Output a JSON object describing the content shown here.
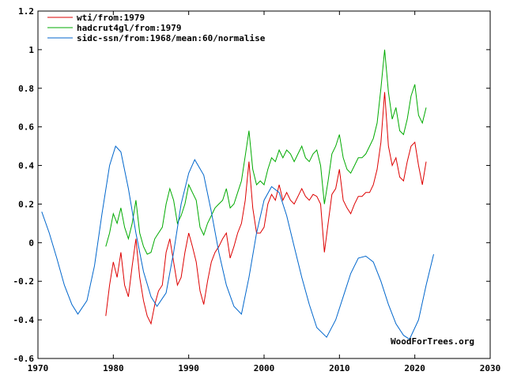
{
  "chart_data": {
    "type": "line",
    "xlim": [
      1970,
      2030
    ],
    "ylim": [
      -0.6,
      1.2
    ],
    "x_ticks": [
      "1970",
      "1980",
      "1990",
      "2000",
      "2010",
      "2020",
      "2030"
    ],
    "y_ticks": [
      "-0.6",
      "-0.4",
      "-0.2",
      "0",
      "0.2",
      "0.4",
      "0.6",
      "0.8",
      "1",
      "1.2"
    ],
    "grid": false,
    "legend_position": "top-left",
    "credit": "WoodForTrees.org",
    "series": [
      {
        "name": "wti/from:1979",
        "color": "#dd0000",
        "x": [
          1979.0,
          1979.5,
          1980.0,
          1980.5,
          1981.0,
          1981.5,
          1982.0,
          1982.5,
          1983.0,
          1983.5,
          1984.0,
          1984.5,
          1985.0,
          1985.5,
          1986.0,
          1986.5,
          1987.0,
          1987.5,
          1988.0,
          1988.5,
          1989.0,
          1989.5,
          1990.0,
          1990.5,
          1991.0,
          1991.5,
          1992.0,
          1992.5,
          1993.0,
          1993.5,
          1994.0,
          1994.5,
          1995.0,
          1995.5,
          1996.0,
          1996.5,
          1997.0,
          1997.5,
          1998.0,
          1998.5,
          1999.0,
          1999.5,
          2000.0,
          2000.5,
          2001.0,
          2001.5,
          2002.0,
          2002.5,
          2003.0,
          2003.5,
          2004.0,
          2004.5,
          2005.0,
          2005.5,
          2006.0,
          2006.5,
          2007.0,
          2007.5,
          2008.0,
          2008.5,
          2009.0,
          2009.5,
          2010.0,
          2010.5,
          2011.0,
          2011.5,
          2012.0,
          2012.5,
          2013.0,
          2013.5,
          2014.0,
          2014.5,
          2015.0,
          2015.5,
          2016.0,
          2016.5,
          2017.0,
          2017.5,
          2018.0,
          2018.5,
          2019.0,
          2019.5,
          2020.0,
          2020.5,
          2021.0,
          2021.5
        ],
        "values": [
          -0.38,
          -0.22,
          -0.1,
          -0.18,
          -0.05,
          -0.22,
          -0.28,
          -0.12,
          0.02,
          -0.18,
          -0.3,
          -0.38,
          -0.42,
          -0.32,
          -0.25,
          -0.22,
          -0.05,
          0.02,
          -0.1,
          -0.22,
          -0.18,
          -0.05,
          0.05,
          -0.02,
          -0.1,
          -0.25,
          -0.32,
          -0.2,
          -0.1,
          -0.05,
          -0.02,
          0.02,
          0.05,
          -0.08,
          -0.02,
          0.05,
          0.1,
          0.22,
          0.42,
          0.18,
          0.05,
          0.05,
          0.08,
          0.2,
          0.25,
          0.22,
          0.3,
          0.22,
          0.26,
          0.22,
          0.2,
          0.24,
          0.28,
          0.24,
          0.22,
          0.25,
          0.24,
          0.2,
          -0.05,
          0.1,
          0.25,
          0.28,
          0.38,
          0.22,
          0.18,
          0.15,
          0.2,
          0.24,
          0.24,
          0.26,
          0.26,
          0.3,
          0.38,
          0.52,
          0.78,
          0.5,
          0.4,
          0.44,
          0.34,
          0.32,
          0.42,
          0.5,
          0.52,
          0.4,
          0.3,
          0.42
        ]
      },
      {
        "name": "hadcrut4gl/from:1979",
        "color": "#00aa00",
        "x": [
          1979.0,
          1979.5,
          1980.0,
          1980.5,
          1981.0,
          1981.5,
          1982.0,
          1982.5,
          1983.0,
          1983.5,
          1984.0,
          1984.5,
          1985.0,
          1985.5,
          1986.0,
          1986.5,
          1987.0,
          1987.5,
          1988.0,
          1988.5,
          1989.0,
          1989.5,
          1990.0,
          1990.5,
          1991.0,
          1991.5,
          1992.0,
          1992.5,
          1993.0,
          1993.5,
          1994.0,
          1994.5,
          1995.0,
          1995.5,
          1996.0,
          1996.5,
          1997.0,
          1997.5,
          1998.0,
          1998.5,
          1999.0,
          1999.5,
          2000.0,
          2000.5,
          2001.0,
          2001.5,
          2002.0,
          2002.5,
          2003.0,
          2003.5,
          2004.0,
          2004.5,
          2005.0,
          2005.5,
          2006.0,
          2006.5,
          2007.0,
          2007.5,
          2008.0,
          2008.5,
          2009.0,
          2009.5,
          2010.0,
          2010.5,
          2011.0,
          2011.5,
          2012.0,
          2012.5,
          2013.0,
          2013.5,
          2014.0,
          2014.5,
          2015.0,
          2015.5,
          2016.0,
          2016.5,
          2017.0,
          2017.5,
          2018.0,
          2018.5,
          2019.0,
          2019.5,
          2020.0,
          2020.5,
          2021.0,
          2021.5
        ],
        "values": [
          -0.02,
          0.05,
          0.15,
          0.1,
          0.18,
          0.08,
          0.02,
          0.1,
          0.22,
          0.05,
          -0.02,
          -0.06,
          -0.05,
          0.02,
          0.05,
          0.08,
          0.2,
          0.28,
          0.22,
          0.1,
          0.14,
          0.2,
          0.3,
          0.26,
          0.22,
          0.08,
          0.04,
          0.1,
          0.14,
          0.18,
          0.2,
          0.22,
          0.28,
          0.18,
          0.2,
          0.26,
          0.32,
          0.45,
          0.58,
          0.38,
          0.3,
          0.32,
          0.3,
          0.38,
          0.44,
          0.42,
          0.48,
          0.44,
          0.48,
          0.46,
          0.42,
          0.46,
          0.5,
          0.44,
          0.42,
          0.46,
          0.48,
          0.4,
          0.2,
          0.32,
          0.46,
          0.5,
          0.56,
          0.44,
          0.38,
          0.36,
          0.4,
          0.44,
          0.44,
          0.46,
          0.5,
          0.54,
          0.62,
          0.8,
          1.0,
          0.78,
          0.64,
          0.7,
          0.58,
          0.56,
          0.64,
          0.76,
          0.82,
          0.66,
          0.62,
          0.7
        ]
      },
      {
        "name": "sidc-ssn/from:1968/mean:60/normalise",
        "color": "#0066cc",
        "x": [
          1970.5,
          1971.5,
          1972.5,
          1973.5,
          1974.5,
          1975.3,
          1976.5,
          1977.5,
          1978.5,
          1979.5,
          1980.3,
          1981.0,
          1982.0,
          1983.0,
          1984.0,
          1985.0,
          1985.8,
          1987.0,
          1988.0,
          1989.0,
          1990.0,
          1990.8,
          1992.0,
          1993.0,
          1994.0,
          1995.0,
          1996.0,
          1997.0,
          1998.0,
          1999.0,
          2000.0,
          2001.0,
          2002.0,
          2003.0,
          2004.0,
          2005.0,
          2006.0,
          2007.0,
          2008.3,
          2009.5,
          2010.5,
          2011.5,
          2012.5,
          2013.5,
          2014.5,
          2015.5,
          2016.5,
          2017.5,
          2018.5,
          2019.3,
          2020.5,
          2021.5,
          2022.5
        ],
        "values": [
          0.16,
          0.05,
          -0.08,
          -0.22,
          -0.32,
          -0.37,
          -0.3,
          -0.12,
          0.15,
          0.4,
          0.5,
          0.47,
          0.28,
          0.05,
          -0.15,
          -0.28,
          -0.33,
          -0.26,
          -0.05,
          0.2,
          0.36,
          0.43,
          0.35,
          0.16,
          -0.05,
          -0.22,
          -0.33,
          -0.37,
          -0.18,
          0.05,
          0.22,
          0.29,
          0.26,
          0.14,
          -0.02,
          -0.18,
          -0.32,
          -0.44,
          -0.49,
          -0.4,
          -0.28,
          -0.16,
          -0.08,
          -0.07,
          -0.1,
          -0.2,
          -0.32,
          -0.42,
          -0.48,
          -0.5,
          -0.4,
          -0.22,
          -0.06
        ]
      }
    ]
  }
}
